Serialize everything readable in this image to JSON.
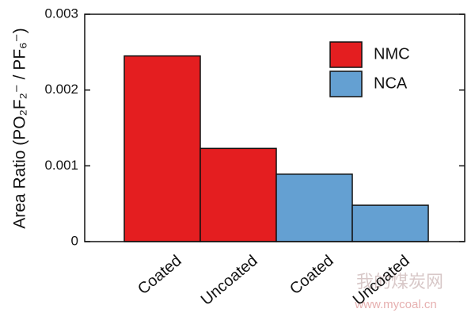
{
  "chart_data": {
    "type": "bar",
    "y_label": "Area Ratio (PO₂F₂⁻ / PF₆⁻)",
    "categories": [
      "Coated",
      "Uncoated",
      "Coated",
      "Uncoated"
    ],
    "series": [
      {
        "name": "NMC",
        "color": "#e41e20",
        "values": [
          0.00245,
          0.00123,
          null,
          null
        ]
      },
      {
        "name": "NCA",
        "color": "#64a0d2",
        "values": [
          null,
          null,
          0.00089,
          0.00048
        ]
      }
    ],
    "ylim": [
      0,
      0.003
    ],
    "yticks": [
      0,
      0.001,
      0.002,
      0.003
    ],
    "legend": "upper right",
    "watermark": [
      "我的煤炭网",
      "www.mycoal.cn"
    ]
  }
}
